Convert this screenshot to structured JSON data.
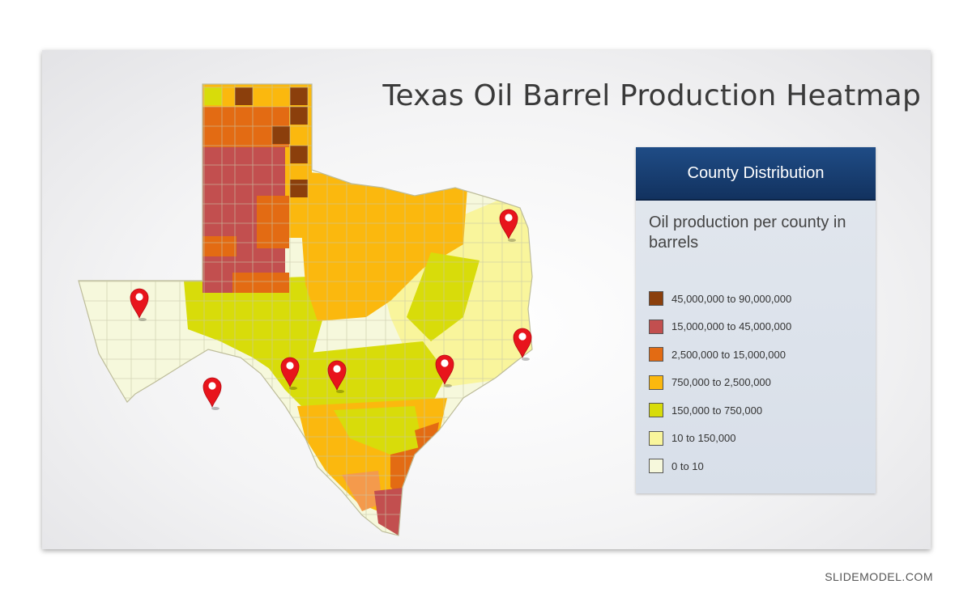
{
  "title": "Texas Oil Barrel Production Heatmap",
  "panel": {
    "header": "County Distribution",
    "subtitle": "Oil production per county in barrels",
    "legend": [
      {
        "label": "45,000,000 to 90,000,000",
        "color": "#8b3f0c"
      },
      {
        "label": "15,000,000 to 45,000,000",
        "color": "#c24f4f"
      },
      {
        "label": "2,500,000 to 15,000,000",
        "color": "#e36b13"
      },
      {
        "label": "750,000 to 2,500,000",
        "color": "#fbb80e"
      },
      {
        "label": "150,000 to 750,000",
        "color": "#d8dc0a"
      },
      {
        "label": "10 to 150,000",
        "color": "#f9f59c"
      },
      {
        "label": "0 to 10",
        "color": "#f6f8dc"
      }
    ]
  },
  "map": {
    "marker_icon": "map-pin-icon",
    "marker_color": "#e8141c",
    "marker_count": 7
  },
  "credit": "SLIDEMODEL.COM"
}
